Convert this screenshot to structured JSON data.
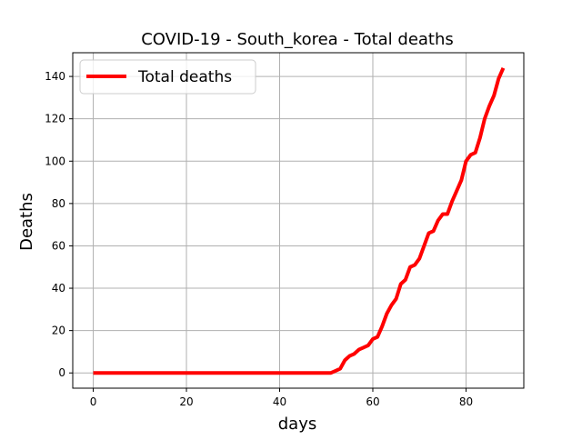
{
  "chart_data": {
    "type": "line",
    "title": "COVID-19 - South_korea - Total deaths",
    "xlabel": "days",
    "ylabel": "Deaths",
    "xlim": [
      -4.4,
      92.4
    ],
    "ylim": [
      -7.2,
      151.2
    ],
    "xticks": [
      0,
      20,
      40,
      60,
      80
    ],
    "yticks": [
      0,
      20,
      40,
      60,
      80,
      100,
      120,
      140
    ],
    "grid": true,
    "legend_position": "top-left",
    "series": [
      {
        "name": "Total deaths",
        "color": "#ff0000",
        "x": [
          0,
          1,
          2,
          3,
          4,
          5,
          6,
          7,
          8,
          9,
          10,
          11,
          12,
          13,
          14,
          15,
          16,
          17,
          18,
          19,
          20,
          21,
          22,
          23,
          24,
          25,
          26,
          27,
          28,
          29,
          30,
          31,
          32,
          33,
          34,
          35,
          36,
          37,
          38,
          39,
          40,
          41,
          42,
          43,
          44,
          45,
          46,
          47,
          48,
          49,
          50,
          51,
          52,
          53,
          54,
          55,
          56,
          57,
          58,
          59,
          60,
          61,
          62,
          63,
          64,
          65,
          66,
          67,
          68,
          69,
          70,
          71,
          72,
          73,
          74,
          75,
          76,
          77,
          78,
          79,
          80,
          81,
          82,
          83,
          84,
          85,
          86,
          87,
          88
        ],
        "values": [
          0,
          0,
          0,
          0,
          0,
          0,
          0,
          0,
          0,
          0,
          0,
          0,
          0,
          0,
          0,
          0,
          0,
          0,
          0,
          0,
          0,
          0,
          0,
          0,
          0,
          0,
          0,
          0,
          0,
          0,
          0,
          0,
          0,
          0,
          0,
          0,
          0,
          0,
          0,
          0,
          0,
          0,
          0,
          0,
          0,
          0,
          0,
          0,
          0,
          0,
          0,
          0,
          1,
          2,
          6,
          8,
          9,
          11,
          12,
          13,
          16,
          17,
          22,
          28,
          32,
          35,
          42,
          44,
          50,
          51,
          54,
          60,
          66,
          67,
          72,
          75,
          75,
          81,
          86,
          91,
          100,
          103,
          104,
          111,
          120,
          126,
          131,
          139,
          144
        ]
      }
    ]
  }
}
